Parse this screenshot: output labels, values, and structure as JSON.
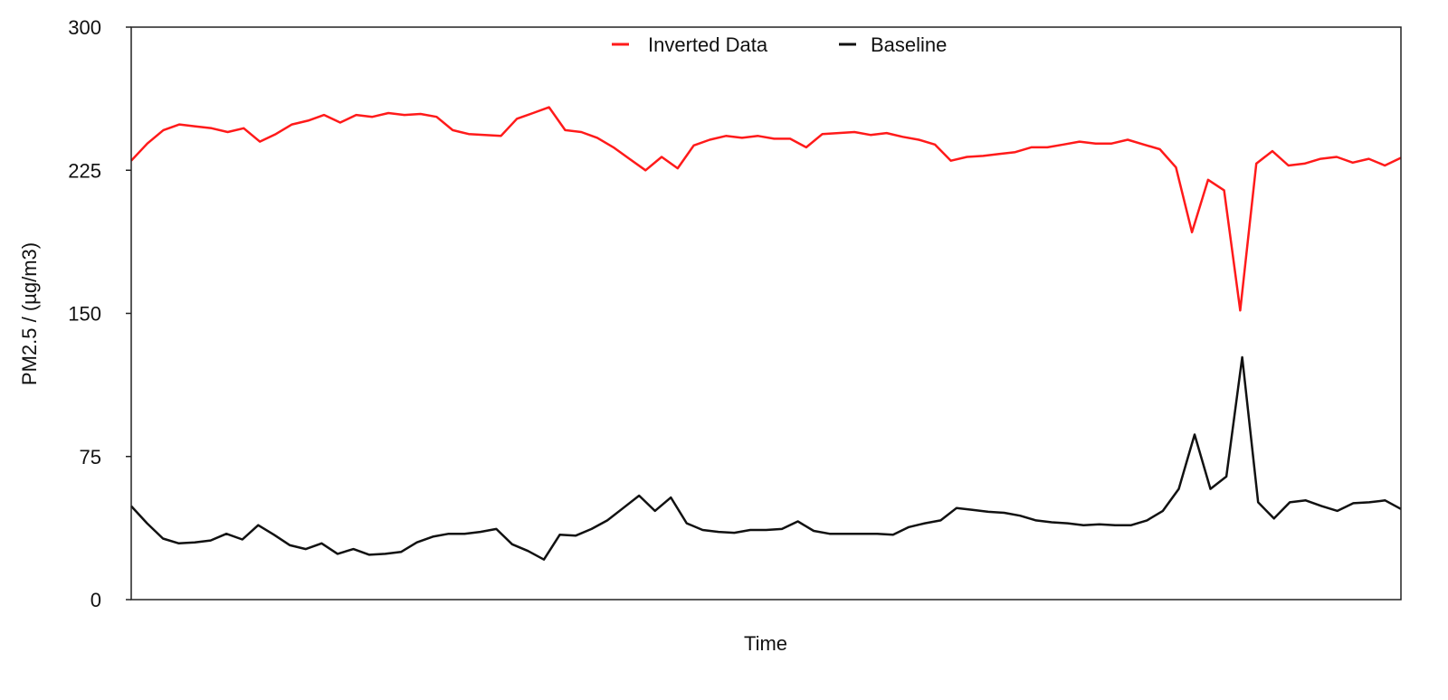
{
  "chart_data": {
    "type": "line",
    "title": "",
    "xlabel": "Time",
    "ylabel": "PM2.5 / (µg/m3)",
    "ylim": [
      0,
      300
    ],
    "yticks": [
      "0",
      "75",
      "150",
      "225",
      "300"
    ],
    "grid": false,
    "legend_placement": "top-center",
    "series": [
      {
        "name": "Inverted Data",
        "color": "#ff1a1a",
        "values": [
          230,
          239,
          246,
          249,
          248,
          247,
          245,
          247,
          240,
          244,
          249,
          251,
          254,
          250,
          254,
          253,
          255,
          254,
          254.5,
          253,
          246,
          244,
          243.5,
          243,
          252,
          255,
          258,
          246,
          245,
          242,
          237,
          231,
          225,
          232,
          226,
          238,
          241,
          243,
          242,
          243,
          241.5,
          241.5,
          237,
          244,
          244.5,
          245,
          243.5,
          244.5,
          242.5,
          241,
          238.5,
          230,
          232,
          232.5,
          233.5,
          234.5,
          237,
          237,
          238.5,
          240,
          239,
          239,
          241,
          238.5,
          236,
          226.5,
          192.5,
          220,
          214.5,
          151.5,
          228.5,
          235,
          227.5,
          228.5,
          231,
          232,
          229,
          231,
          227.5,
          231.5
        ]
      },
      {
        "name": "Baseline",
        "color": "#111111",
        "values": [
          49,
          40,
          32,
          29.5,
          30,
          31,
          34.5,
          31.5,
          39,
          34,
          28.5,
          26.5,
          29.5,
          24,
          26.5,
          23.5,
          24,
          25,
          30,
          33,
          34.5,
          34.5,
          35.5,
          37,
          29,
          25.5,
          21,
          34,
          33.5,
          37,
          41.5,
          48,
          54.5,
          46.5,
          53.5,
          40,
          36.5,
          35.5,
          35,
          36.5,
          36.5,
          37,
          41,
          36,
          34.5,
          34.5,
          34.5,
          34.5,
          34,
          38,
          40,
          41.5,
          48,
          47,
          46,
          45.5,
          44,
          41.5,
          40.5,
          40,
          39,
          39.5,
          39,
          39,
          41.5,
          46.5,
          58,
          86.5,
          58,
          64.5,
          127,
          51,
          42.5,
          51,
          52,
          49,
          46.5,
          50.5,
          51,
          52,
          47.5
        ]
      }
    ]
  }
}
